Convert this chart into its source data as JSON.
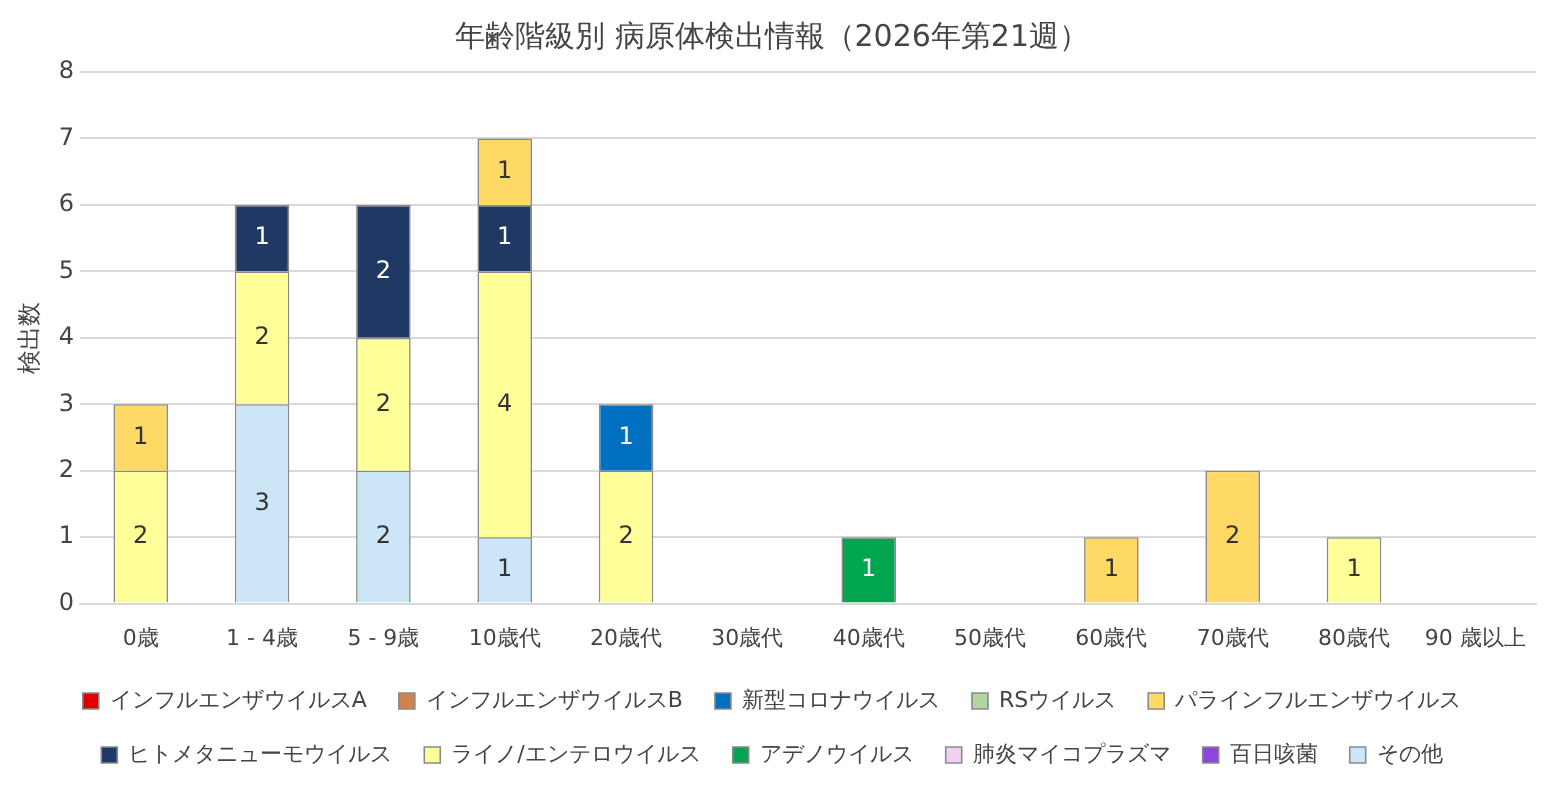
{
  "chart_data": {
    "type": "bar",
    "title": "年齢階級別 病原体検出情報（2026年第21週）",
    "ylabel": "検出数",
    "categories": [
      "0歳",
      "1 - 4歳",
      "5 - 9歳",
      "10歳代",
      "20歳代",
      "30歳代",
      "40歳代",
      "50歳代",
      "60歳代",
      "70歳代",
      "80歳代",
      "90 歳以上"
    ],
    "series": [
      {
        "name": "その他",
        "color": "#cce6f8",
        "values": [
          null,
          3,
          2,
          1,
          null,
          null,
          null,
          null,
          null,
          null,
          null,
          null
        ]
      },
      {
        "name": "百日咳菌",
        "color": "#8e44dd",
        "values": [
          null,
          null,
          null,
          null,
          null,
          null,
          null,
          null,
          null,
          null,
          null,
          null
        ]
      },
      {
        "name": "肺炎マイコプラズマ",
        "color": "#f2d0f2",
        "values": [
          null,
          null,
          null,
          null,
          null,
          null,
          null,
          null,
          null,
          null,
          null,
          null
        ]
      },
      {
        "name": "アデノウイルス",
        "color": "#00a550",
        "values": [
          null,
          null,
          null,
          null,
          null,
          null,
          1,
          null,
          null,
          null,
          null,
          null
        ]
      },
      {
        "name": "ライノ/エンテロウイルス",
        "color": "#ffff99",
        "values": [
          2,
          2,
          2,
          4,
          2,
          null,
          null,
          null,
          null,
          null,
          1,
          null
        ]
      },
      {
        "name": "ヒトメタニューモウイルス",
        "color": "#203864",
        "values": [
          null,
          1,
          2,
          1,
          null,
          null,
          null,
          null,
          null,
          null,
          null,
          null
        ]
      },
      {
        "name": "パラインフルエンザウイルス",
        "color": "#ffd966",
        "values": [
          1,
          null,
          null,
          1,
          null,
          null,
          null,
          null,
          1,
          2,
          null,
          null
        ]
      },
      {
        "name": "RSウイルス",
        "color": "#b4d4a0",
        "values": [
          null,
          null,
          null,
          null,
          null,
          null,
          null,
          null,
          null,
          null,
          null,
          null
        ]
      },
      {
        "name": "新型コロナウイルス",
        "color": "#0070c0",
        "values": [
          null,
          null,
          null,
          null,
          1,
          null,
          null,
          null,
          null,
          null,
          null,
          null
        ]
      },
      {
        "name": "インフルエンザウイルスB",
        "color": "#d0844c",
        "values": [
          null,
          null,
          null,
          null,
          null,
          null,
          null,
          null,
          null,
          null,
          null,
          null
        ]
      },
      {
        "name": "インフルエンザウイルスA",
        "color": "#e00000",
        "values": [
          null,
          null,
          null,
          null,
          null,
          null,
          null,
          null,
          null,
          null,
          null,
          null
        ]
      }
    ],
    "stacked": true,
    "ylim": [
      0,
      8
    ],
    "yticks": [
      0,
      1,
      2,
      3,
      4,
      5,
      6,
      7,
      8
    ],
    "grid": "y",
    "legend": "bottom",
    "data_labels": true
  }
}
